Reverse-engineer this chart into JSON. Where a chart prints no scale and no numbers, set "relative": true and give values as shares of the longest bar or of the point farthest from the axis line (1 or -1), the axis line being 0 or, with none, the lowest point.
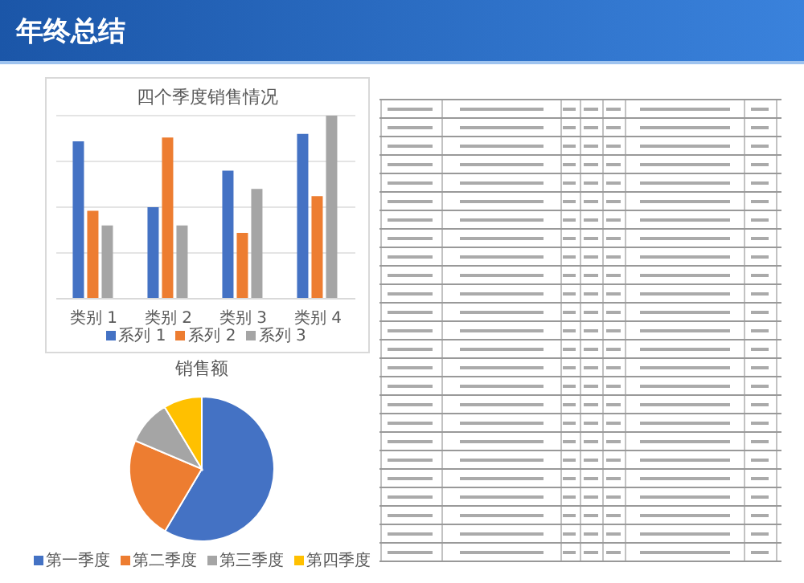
{
  "chart_data": [
    {
      "type": "other",
      "title": "年终总结"
    },
    {
      "type": "bar",
      "title": "四个季度销售情况",
      "relative": true,
      "categories": [
        "类别 1",
        "类别 2",
        "类别 3",
        "类别 4"
      ],
      "grid": "y",
      "legend": "bottom",
      "series": [
        {
          "name": "系列 1",
          "color": "#4472c4",
          "values": [
            0.86,
            0.5,
            0.7,
            0.9
          ]
        },
        {
          "name": "系列 2",
          "color": "#ed7d31",
          "values": [
            0.48,
            0.88,
            0.36,
            0.56
          ]
        },
        {
          "name": "系列 3",
          "color": "#a5a5a5",
          "values": [
            0.4,
            0.4,
            0.6,
            1
          ]
        }
      ]
    },
    {
      "type": "pie",
      "title": "销售额",
      "legend": "bottom",
      "categories": [
        "第一季度",
        "第二季度",
        "第三季度",
        "第四季度"
      ],
      "values": [
        58.5,
        22.9,
        10,
        8.6
      ],
      "colors": [
        "#4472c4",
        "#ed7d31",
        "#a5a5a5",
        "#ffc000"
      ]
    }
  ]
}
